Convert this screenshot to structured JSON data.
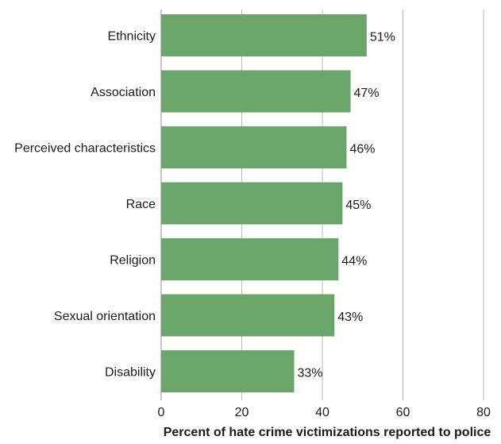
{
  "chart_data": {
    "type": "bar",
    "orientation": "horizontal",
    "categories": [
      "Ethnicity",
      "Association",
      "Perceived characteristics",
      "Race",
      "Religion",
      "Sexual orientation",
      "Disability"
    ],
    "values": [
      51,
      47,
      46,
      45,
      44,
      43,
      33
    ],
    "value_labels": [
      "51%",
      "47%",
      "46%",
      "45%",
      "44%",
      "43%",
      "33%"
    ],
    "xlabel": "Percent of hate crime victimizations reported to police",
    "ylabel": "",
    "xlim": [
      0,
      80
    ],
    "xticks": [
      0,
      20,
      40,
      60,
      80
    ],
    "xtick_labels": [
      "0",
      "20",
      "40",
      "60",
      "80"
    ],
    "grid": "vertical",
    "legend": "none",
    "colors": {
      "bar": "#6aa66a",
      "grid": "#b8b8b8",
      "text": "#1a1a1a"
    }
  }
}
